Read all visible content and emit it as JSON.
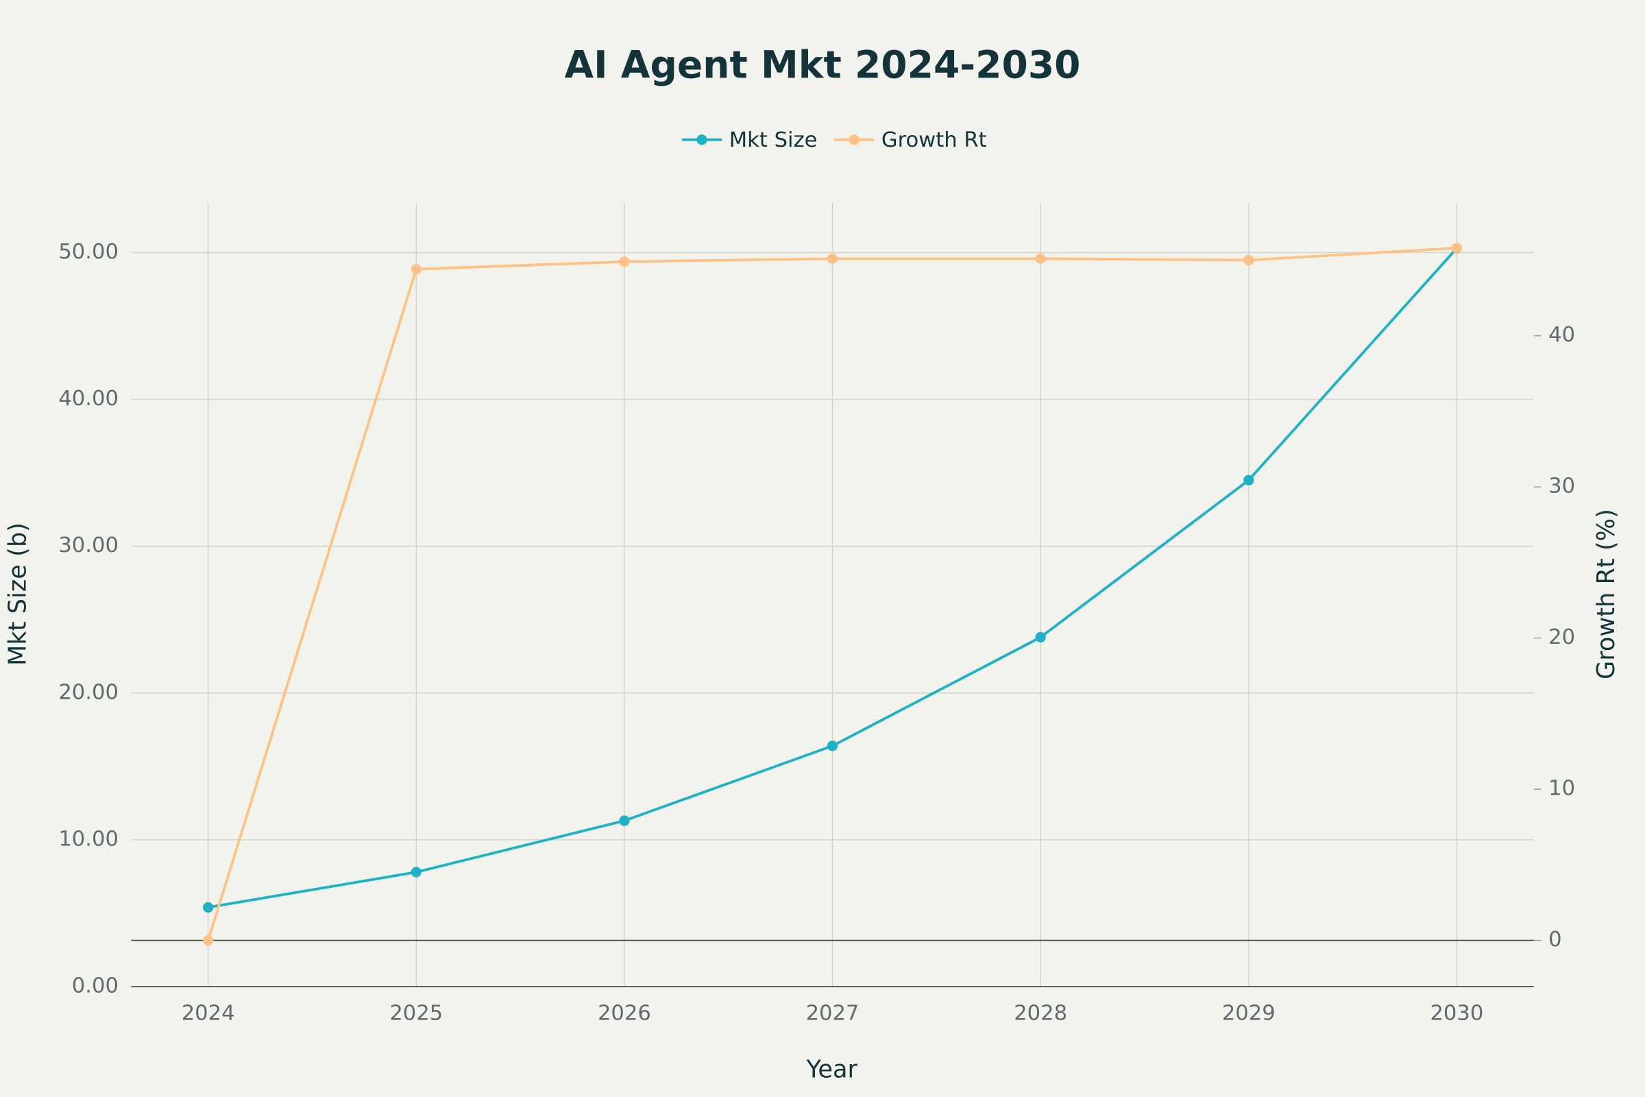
{
  "chart_data": {
    "type": "line",
    "title": "AI Agent Mkt 2024-2030",
    "x_label": "Year",
    "y_label": "Mkt Size (b)",
    "y2_label": "Growth Rt (%)",
    "x": [
      2024,
      2025,
      2026,
      2027,
      2028,
      2029,
      2030
    ],
    "xlim": [
      2023.63,
      2030.37
    ],
    "xticks": [
      2024,
      2025,
      2026,
      2027,
      2028,
      2029,
      2030
    ],
    "ylim": [
      0,
      53.4
    ],
    "yticks": [
      {
        "value": 0,
        "label": "0.00"
      },
      {
        "value": 10,
        "label": "10.00"
      },
      {
        "value": 20,
        "label": "20.00"
      },
      {
        "value": 30,
        "label": "30.00"
      },
      {
        "value": 40,
        "label": "40.00"
      },
      {
        "value": 50,
        "label": "50.00"
      }
    ],
    "y2lim": [
      -3.06,
      48.8
    ],
    "y2ticks": [
      0,
      10,
      20,
      30,
      40
    ],
    "grid": true,
    "legend": "top",
    "series": [
      {
        "name": "Mkt Size",
        "color": "#1fb2c6",
        "values": [
          5.4,
          7.8,
          11.3,
          16.4,
          23.8,
          34.5,
          50.3
        ]
      },
      {
        "name": "Growth Rt",
        "color": "#ffc185",
        "axis": "y2",
        "values": [
          0,
          44.4,
          44.9,
          45.1,
          45.1,
          45.0,
          45.8
        ]
      }
    ]
  }
}
